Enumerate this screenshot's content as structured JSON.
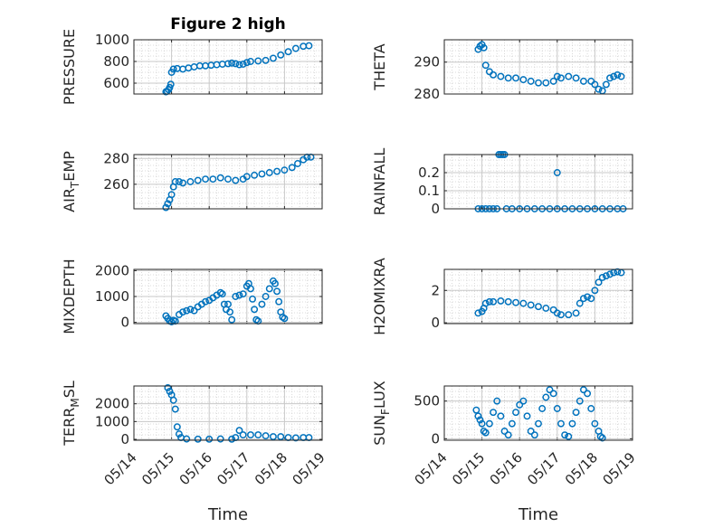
{
  "chart_data": [
    {
      "type": "scatter",
      "title": "Figure 2 high",
      "ylabel": "PRESSURE",
      "ylim": [
        500,
        1000
      ],
      "yticks": [
        600,
        800,
        1000
      ],
      "xlabel": "",
      "xlim": [
        0,
        5
      ],
      "xticks": [
        "05/14",
        "05/15",
        "05/16",
        "05/17",
        "05/18",
        "05/19"
      ],
      "points": [
        [
          0.85,
          520
        ],
        [
          0.88,
          525
        ],
        [
          0.92,
          540
        ],
        [
          0.95,
          560
        ],
        [
          0.98,
          590
        ],
        [
          1.0,
          700
        ],
        [
          1.05,
          730
        ],
        [
          1.15,
          735
        ],
        [
          1.3,
          730
        ],
        [
          1.45,
          740
        ],
        [
          1.6,
          750
        ],
        [
          1.75,
          760
        ],
        [
          1.9,
          760
        ],
        [
          2.05,
          765
        ],
        [
          2.2,
          770
        ],
        [
          2.35,
          775
        ],
        [
          2.5,
          780
        ],
        [
          2.6,
          785
        ],
        [
          2.7,
          780
        ],
        [
          2.8,
          770
        ],
        [
          2.9,
          775
        ],
        [
          3.0,
          790
        ],
        [
          3.1,
          800
        ],
        [
          3.3,
          805
        ],
        [
          3.5,
          810
        ],
        [
          3.7,
          830
        ],
        [
          3.9,
          860
        ],
        [
          4.1,
          890
        ],
        [
          4.3,
          920
        ],
        [
          4.5,
          940
        ],
        [
          4.65,
          945
        ]
      ],
      "grid": true,
      "marker": "circle",
      "color": "#0072BD"
    },
    {
      "type": "scatter",
      "title": "",
      "ylabel": "THETA",
      "ylim": [
        280,
        297
      ],
      "yticks": [
        280,
        290
      ],
      "xlabel": "",
      "xlim": [
        0,
        5
      ],
      "xticks": [
        "05/14",
        "05/15",
        "05/16",
        "05/17",
        "05/18",
        "05/19"
      ],
      "points": [
        [
          0.9,
          294
        ],
        [
          0.95,
          295
        ],
        [
          1.0,
          295.5
        ],
        [
          1.05,
          294.5
        ],
        [
          1.1,
          289
        ],
        [
          1.2,
          287
        ],
        [
          1.3,
          286
        ],
        [
          1.5,
          285.5
        ],
        [
          1.7,
          285
        ],
        [
          1.9,
          285
        ],
        [
          2.1,
          284.5
        ],
        [
          2.3,
          284
        ],
        [
          2.5,
          283.5
        ],
        [
          2.7,
          283.5
        ],
        [
          2.9,
          284
        ],
        [
          3.0,
          285.5
        ],
        [
          3.1,
          285
        ],
        [
          3.3,
          285.5
        ],
        [
          3.5,
          285
        ],
        [
          3.7,
          284
        ],
        [
          3.9,
          284
        ],
        [
          4.0,
          283
        ],
        [
          4.1,
          281.5
        ],
        [
          4.2,
          281
        ],
        [
          4.3,
          283
        ],
        [
          4.4,
          285
        ],
        [
          4.5,
          285.5
        ],
        [
          4.6,
          286
        ],
        [
          4.7,
          285.5
        ]
      ],
      "grid": true,
      "marker": "circle",
      "color": "#0072BD"
    },
    {
      "type": "scatter",
      "title": "",
      "ylabel": "AIR_TEMP",
      "ylim": [
        241,
        283
      ],
      "yticks": [
        260,
        280
      ],
      "xlabel": "",
      "xlim": [
        0,
        5
      ],
      "xticks": [
        "05/14",
        "05/15",
        "05/16",
        "05/17",
        "05/18",
        "05/19"
      ],
      "points": [
        [
          0.85,
          242
        ],
        [
          0.9,
          245
        ],
        [
          0.95,
          248
        ],
        [
          1.0,
          252
        ],
        [
          1.05,
          258
        ],
        [
          1.1,
          262
        ],
        [
          1.2,
          262
        ],
        [
          1.3,
          261
        ],
        [
          1.5,
          262
        ],
        [
          1.7,
          263
        ],
        [
          1.9,
          264
        ],
        [
          2.1,
          264
        ],
        [
          2.3,
          265
        ],
        [
          2.5,
          264
        ],
        [
          2.7,
          263
        ],
        [
          2.9,
          264
        ],
        [
          3.0,
          266
        ],
        [
          3.2,
          267
        ],
        [
          3.4,
          268
        ],
        [
          3.6,
          269
        ],
        [
          3.8,
          270
        ],
        [
          4.0,
          271
        ],
        [
          4.2,
          273
        ],
        [
          4.35,
          276
        ],
        [
          4.5,
          279
        ],
        [
          4.6,
          281
        ],
        [
          4.7,
          281
        ]
      ],
      "grid": true,
      "marker": "circle",
      "color": "#0072BD"
    },
    {
      "type": "scatter",
      "title": "",
      "ylabel": "RAINFALL",
      "ylim": [
        0,
        0.3
      ],
      "yticks": [
        0,
        0.1,
        0.2
      ],
      "xlabel": "",
      "xlim": [
        0,
        5
      ],
      "xticks": [
        "05/14",
        "05/15",
        "05/16",
        "05/17",
        "05/18",
        "05/19"
      ],
      "points": [
        [
          0.9,
          0
        ],
        [
          1.0,
          0
        ],
        [
          1.1,
          0
        ],
        [
          1.2,
          0
        ],
        [
          1.3,
          0
        ],
        [
          1.4,
          0
        ],
        [
          1.45,
          0.3
        ],
        [
          1.5,
          0.3
        ],
        [
          1.55,
          0.3
        ],
        [
          1.6,
          0.3
        ],
        [
          1.65,
          0
        ],
        [
          1.8,
          0
        ],
        [
          2.0,
          0
        ],
        [
          2.2,
          0
        ],
        [
          2.4,
          0
        ],
        [
          2.6,
          0
        ],
        [
          2.8,
          0
        ],
        [
          3.0,
          0.2
        ],
        [
          3.0,
          0
        ],
        [
          3.2,
          0
        ],
        [
          3.4,
          0
        ],
        [
          3.6,
          0
        ],
        [
          3.8,
          0
        ],
        [
          4.0,
          0
        ],
        [
          4.2,
          0
        ],
        [
          4.4,
          0
        ],
        [
          4.6,
          0
        ],
        [
          4.75,
          0
        ]
      ],
      "grid": true,
      "marker": "circle",
      "color": "#0072BD"
    },
    {
      "type": "scatter",
      "title": "",
      "ylabel": "MIXDEPTH",
      "ylim": [
        -50,
        2050
      ],
      "yticks": [
        0,
        1000,
        2000
      ],
      "xlabel": "",
      "xlim": [
        0,
        5
      ],
      "xticks": [
        "05/14",
        "05/15",
        "05/16",
        "05/17",
        "05/18",
        "05/19"
      ],
      "points": [
        [
          0.85,
          250
        ],
        [
          0.9,
          150
        ],
        [
          0.95,
          50
        ],
        [
          1.0,
          20
        ],
        [
          1.05,
          80
        ],
        [
          1.1,
          50
        ],
        [
          1.2,
          300
        ],
        [
          1.3,
          400
        ],
        [
          1.4,
          450
        ],
        [
          1.5,
          500
        ],
        [
          1.6,
          450
        ],
        [
          1.7,
          600
        ],
        [
          1.8,
          700
        ],
        [
          1.9,
          800
        ],
        [
          2.0,
          850
        ],
        [
          2.1,
          950
        ],
        [
          2.2,
          1050
        ],
        [
          2.3,
          1150
        ],
        [
          2.35,
          1100
        ],
        [
          2.4,
          700
        ],
        [
          2.45,
          500
        ],
        [
          2.5,
          700
        ],
        [
          2.55,
          400
        ],
        [
          2.6,
          100
        ],
        [
          2.7,
          1000
        ],
        [
          2.8,
          1050
        ],
        [
          2.9,
          1100
        ],
        [
          3.0,
          1400
        ],
        [
          3.05,
          1500
        ],
        [
          3.1,
          1300
        ],
        [
          3.15,
          900
        ],
        [
          3.2,
          500
        ],
        [
          3.25,
          100
        ],
        [
          3.3,
          50
        ],
        [
          3.4,
          700
        ],
        [
          3.5,
          1000
        ],
        [
          3.6,
          1300
        ],
        [
          3.7,
          1600
        ],
        [
          3.75,
          1500
        ],
        [
          3.8,
          1200
        ],
        [
          3.85,
          800
        ],
        [
          3.9,
          400
        ],
        [
          3.95,
          200
        ],
        [
          4.0,
          150
        ]
      ],
      "grid": true,
      "marker": "circle",
      "color": "#0072BD"
    },
    {
      "type": "scatter",
      "title": "",
      "ylabel": "H2OMIXRA",
      "ylim": [
        -0.05,
        3.3
      ],
      "yticks": [
        0,
        2
      ],
      "xlabel": "",
      "xlim": [
        0,
        5
      ],
      "xticks": [
        "05/14",
        "05/15",
        "05/16",
        "05/17",
        "05/18",
        "05/19"
      ],
      "points": [
        [
          0.9,
          0.6
        ],
        [
          1.0,
          0.7
        ],
        [
          1.05,
          0.9
        ],
        [
          1.1,
          1.2
        ],
        [
          1.2,
          1.3
        ],
        [
          1.3,
          1.3
        ],
        [
          1.5,
          1.35
        ],
        [
          1.7,
          1.3
        ],
        [
          1.9,
          1.25
        ],
        [
          2.1,
          1.2
        ],
        [
          2.3,
          1.1
        ],
        [
          2.5,
          1.0
        ],
        [
          2.7,
          0.9
        ],
        [
          2.9,
          0.8
        ],
        [
          3.0,
          0.6
        ],
        [
          3.1,
          0.5
        ],
        [
          3.3,
          0.5
        ],
        [
          3.5,
          0.6
        ],
        [
          3.6,
          1.2
        ],
        [
          3.7,
          1.5
        ],
        [
          3.8,
          1.6
        ],
        [
          3.9,
          1.5
        ],
        [
          4.0,
          2.0
        ],
        [
          4.1,
          2.5
        ],
        [
          4.2,
          2.8
        ],
        [
          4.3,
          2.9
        ],
        [
          4.4,
          3.0
        ],
        [
          4.5,
          3.1
        ],
        [
          4.6,
          3.15
        ],
        [
          4.7,
          3.1
        ]
      ],
      "grid": true,
      "marker": "circle",
      "color": "#0072BD"
    },
    {
      "type": "scatter",
      "title": "",
      "ylabel": "TERR_MSL",
      "ylim": [
        -50,
        3000
      ],
      "yticks": [
        0,
        1000,
        2000
      ],
      "xlabel": "Time",
      "xlim": [
        0,
        5
      ],
      "xticks": [
        "05/14",
        "05/15",
        "05/16",
        "05/17",
        "05/18",
        "05/19"
      ],
      "points": [
        [
          0.9,
          2900
        ],
        [
          0.95,
          2700
        ],
        [
          1.0,
          2500
        ],
        [
          1.05,
          2200
        ],
        [
          1.1,
          1700
        ],
        [
          1.15,
          700
        ],
        [
          1.2,
          300
        ],
        [
          1.25,
          100
        ],
        [
          1.4,
          20
        ],
        [
          1.7,
          10
        ],
        [
          2.0,
          10
        ],
        [
          2.3,
          20
        ],
        [
          2.6,
          10
        ],
        [
          2.7,
          100
        ],
        [
          2.8,
          500
        ],
        [
          2.9,
          250
        ],
        [
          3.1,
          250
        ],
        [
          3.3,
          250
        ],
        [
          3.5,
          200
        ],
        [
          3.7,
          150
        ],
        [
          3.9,
          150
        ],
        [
          4.1,
          100
        ],
        [
          4.3,
          80
        ],
        [
          4.5,
          100
        ],
        [
          4.65,
          100
        ]
      ],
      "grid": true,
      "marker": "circle",
      "color": "#0072BD"
    },
    {
      "type": "scatter",
      "title": "",
      "ylabel": "SUN_FLUX",
      "ylim": [
        -20,
        700
      ],
      "yticks": [
        0,
        500
      ],
      "xlabel": "Time",
      "xlim": [
        0,
        5
      ],
      "xticks": [
        "05/14",
        "05/15",
        "05/16",
        "05/17",
        "05/18",
        "05/19"
      ],
      "points": [
        [
          0.85,
          380
        ],
        [
          0.9,
          300
        ],
        [
          0.95,
          250
        ],
        [
          1.0,
          200
        ],
        [
          1.05,
          100
        ],
        [
          1.1,
          80
        ],
        [
          1.2,
          200
        ],
        [
          1.3,
          350
        ],
        [
          1.4,
          500
        ],
        [
          1.5,
          300
        ],
        [
          1.6,
          100
        ],
        [
          1.7,
          50
        ],
        [
          1.8,
          200
        ],
        [
          1.9,
          350
        ],
        [
          2.0,
          450
        ],
        [
          2.1,
          500
        ],
        [
          2.2,
          300
        ],
        [
          2.3,
          100
        ],
        [
          2.4,
          50
        ],
        [
          2.5,
          200
        ],
        [
          2.6,
          400
        ],
        [
          2.7,
          550
        ],
        [
          2.8,
          650
        ],
        [
          2.9,
          600
        ],
        [
          3.0,
          400
        ],
        [
          3.1,
          200
        ],
        [
          3.2,
          50
        ],
        [
          3.3,
          30
        ],
        [
          3.4,
          200
        ],
        [
          3.5,
          350
        ],
        [
          3.6,
          500
        ],
        [
          3.7,
          650
        ],
        [
          3.8,
          600
        ],
        [
          3.9,
          400
        ],
        [
          4.0,
          200
        ],
        [
          4.1,
          100
        ],
        [
          4.15,
          30
        ],
        [
          4.2,
          10
        ]
      ],
      "grid": true,
      "marker": "circle",
      "color": "#0072BD"
    }
  ]
}
